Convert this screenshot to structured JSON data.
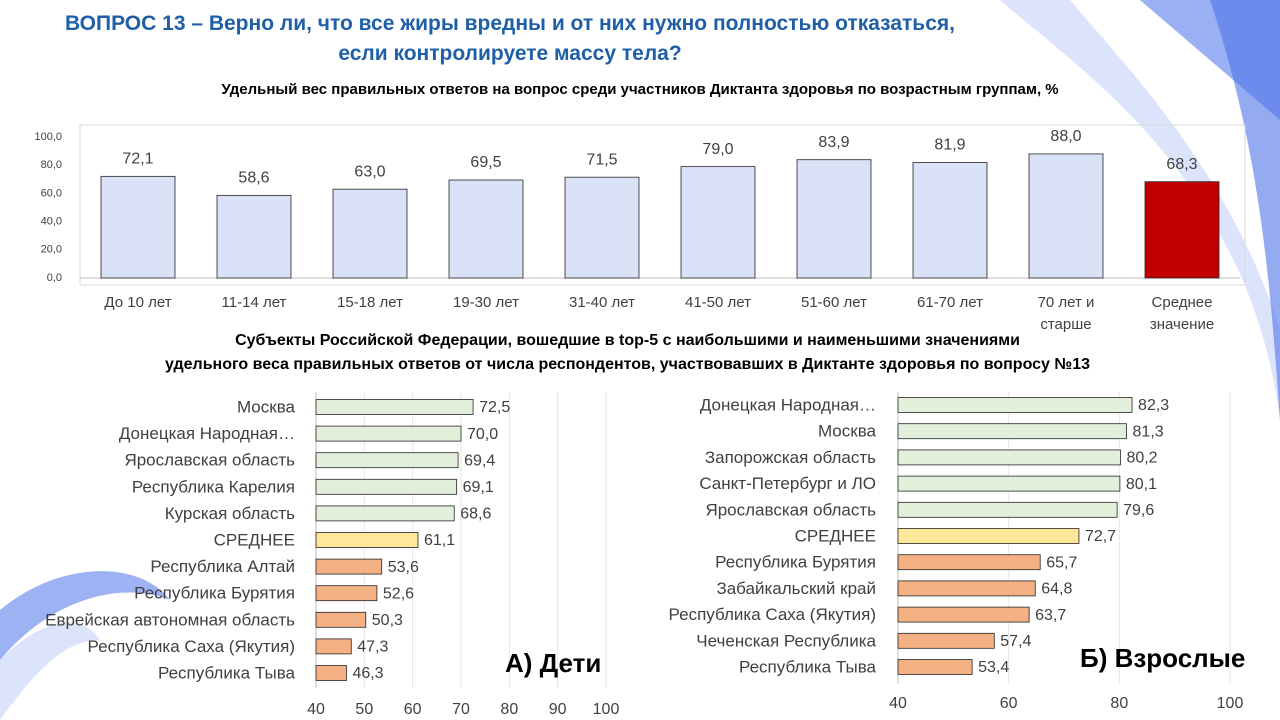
{
  "header": {
    "title_lines": [
      "ВОПРОС 13 – Верно ли, что все жиры вредны и от них нужно полностью отказаться,",
      "если контролируете массу тела?"
    ],
    "section_title_lines": [
      "Субъекты Российской Федерации, вошедшие в  top-5 с наибольшими и наименьшими значениями",
      "удельного веса правильных ответов от числа респондентов,  участвовавших  в Диктанте здоровья  по вопросу №13"
    ]
  },
  "chart_data": [
    {
      "type": "bar",
      "title": "Удельный вес правильных ответов на вопрос среди участников Диктанта здоровья  по возрастным  группам, %",
      "categories": [
        "До 10 лет",
        "11-14 лет",
        "15-18 лет",
        "19-30 лет",
        "31-40 лет",
        "41-50 лет",
        "51-60 лет",
        "61-70 лет",
        "70 лет и старше",
        "Среднее значение"
      ],
      "values": [
        72.1,
        58.6,
        63.0,
        69.5,
        71.5,
        79.0,
        83.9,
        81.9,
        88.0,
        68.3
      ],
      "value_labels": [
        "72,1",
        "58,6",
        "63,0",
        "69,5",
        "71,5",
        "79,0",
        "83,9",
        "81,9",
        "88,0",
        "68,3"
      ],
      "colors": [
        "#d9e2f6",
        "#d9e2f6",
        "#d9e2f6",
        "#d9e2f6",
        "#d9e2f6",
        "#d9e2f6",
        "#d9e2f6",
        "#d9e2f6",
        "#d9e2f6",
        "#c00000"
      ],
      "ylim": [
        0,
        100
      ],
      "yticks": [
        {
          "value": 0,
          "label": "0,0"
        },
        {
          "value": 20,
          "label": "20,0"
        },
        {
          "value": 40,
          "label": "40,0"
        },
        {
          "value": 60,
          "label": "60,0"
        },
        {
          "value": 80,
          "label": "80,0"
        },
        {
          "value": 100,
          "label": "100,0"
        }
      ]
    },
    {
      "type": "hbar",
      "annotation": "А) Дети",
      "categories": [
        "Москва",
        "Донецкая Народная…",
        "Ярославская область",
        "Республика Карелия",
        "Курская область",
        "СРЕДНЕЕ",
        "Республика Алтай",
        "Республика Бурятия",
        "Еврейская автономная область",
        "Республика Саха (Якутия)",
        "Республика Тыва"
      ],
      "values": [
        72.5,
        70.0,
        69.4,
        69.1,
        68.6,
        61.1,
        53.6,
        52.6,
        50.3,
        47.3,
        46.3
      ],
      "value_labels": [
        "72,5",
        "70,0",
        "69,4",
        "69,1",
        "68,6",
        "61,1",
        "53,6",
        "52,6",
        "50,3",
        "47,3",
        "46,3"
      ],
      "colors": [
        "#e2efda",
        "#e2efda",
        "#e2efda",
        "#e2efda",
        "#e2efda",
        "#ffe699",
        "#f4b183",
        "#f4b183",
        "#f4b183",
        "#f4b183",
        "#f4b183"
      ],
      "xlim": [
        40,
        100
      ],
      "xticks": [
        40,
        50,
        60,
        70,
        80,
        90,
        100
      ]
    },
    {
      "type": "hbar",
      "annotation": "Б) Взрослые",
      "categories": [
        "Донецкая Народная…",
        "Москва",
        "Запорожская область",
        "Санкт-Петербург и ЛО",
        "Ярославская область",
        "СРЕДНЕЕ",
        "Республика Бурятия",
        "Забайкальский край",
        "Республика Саха (Якутия)",
        "Чеченская Республика",
        "Республика Тыва"
      ],
      "values": [
        82.3,
        81.3,
        80.2,
        80.1,
        79.6,
        72.7,
        65.7,
        64.8,
        63.7,
        57.4,
        53.4
      ],
      "value_labels": [
        "82,3",
        "81,3",
        "80,2",
        "80,1",
        "79,6",
        "72,7",
        "65,7",
        "64,8",
        "63,7",
        "57,4",
        "53,4"
      ],
      "colors": [
        "#e2efda",
        "#e2efda",
        "#e2efda",
        "#e2efda",
        "#e2efda",
        "#ffe699",
        "#f4b183",
        "#f4b183",
        "#f4b183",
        "#f4b183",
        "#f4b183"
      ],
      "xlim": [
        40,
        100
      ],
      "xticks": [
        40,
        60,
        80,
        100
      ]
    }
  ]
}
